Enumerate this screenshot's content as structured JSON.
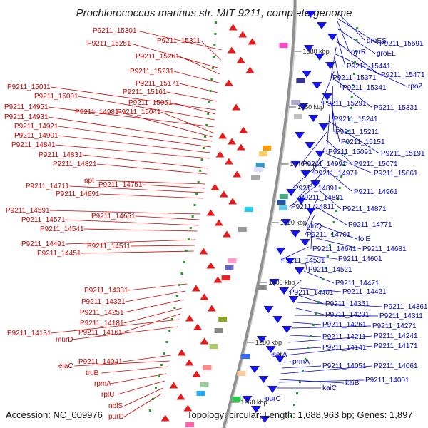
{
  "title": "Prochlorococcus marinus str. MIT 9211, complete genome",
  "accession_label": "Accession: NC_009976",
  "topology_label": "Topology: circular; Length: 1,688,963 bp; Genes: 1,897",
  "colors": {
    "forward_strand": "#e8191a",
    "reverse_strand": "#1414e6",
    "left_label": "#cc0000",
    "right_label": "#0000cc",
    "backbone": "#909090"
  },
  "kbp_marks": [
    "1380 kbp",
    "1360 kbp",
    "1340 kbp",
    "1320 kbp",
    "1300 kbp",
    "1280 kbp",
    "1260 kbp"
  ],
  "left_labels": [
    "P9211_15301",
    "P9211_15311",
    "P9211_15251",
    "P9211_15261",
    "P9211_15231",
    "P9211_15171",
    "P9211_15161",
    "P9211_15011",
    "P9211_15051",
    "P9211_15001",
    "P9211_14951",
    "P9211_15041",
    "P9211_14981",
    "P9211_14931",
    "P9211_14921",
    "P9211_14901",
    "P9211_14841",
    "P9211_14831",
    "P9211_14821",
    "apt",
    "P9211_14751",
    "P9211_14711",
    "P9211_14691",
    "P9211_14591",
    "P9211_14651",
    "P9211_14571",
    "P9211_14541",
    "P9211_14491",
    "P9211_14511",
    "P9211_14451",
    "P9211_14331",
    "P9211_14321",
    "P9211_14251",
    "P9211_14181",
    "P9211_14161",
    "P9211_14131",
    "murD",
    "P9211_14041",
    "elaC",
    "truB",
    "rpmA",
    "rplU",
    "nblS",
    "purD"
  ],
  "right_labels": [
    "groES",
    "P9211_15591",
    "pyrR",
    "groEL",
    "P9211_15441",
    "P9211_15471",
    "P9211_15371",
    "rpoZ",
    "P9211_15341",
    "P9211_15291",
    "P9211_15331",
    "P9211_15241",
    "P9211_15211",
    "P9211_15151",
    "P9211_15091",
    "P9211_15191",
    "P9211_14991",
    "P9211_15071",
    "P9211_14971",
    "P9211_15061",
    "P9211_14891",
    "P9211_14961",
    "P9211_14881",
    "P9211_14811",
    "P9211_14871",
    "glnQ",
    "P9211_14771",
    "P9211_14701",
    "folE",
    "P9211_14641",
    "P9211_14681",
    "P9211_14531",
    "P9211_14601",
    "P9211_14521",
    "P9211_14471",
    "P9211_14401",
    "P9211_14421",
    "P9211_14351",
    "P9211_14361",
    "P9211_14291",
    "P9211_14311",
    "P9211_14261",
    "P9211_14271",
    "P9211_14211",
    "P9211_14241",
    "P9211_14141",
    "P9211_14171",
    "serA",
    "prmA",
    "P9211_14051",
    "P9211_14061",
    "kaiB",
    "P9211_14001",
    "kaiC",
    "purC"
  ]
}
